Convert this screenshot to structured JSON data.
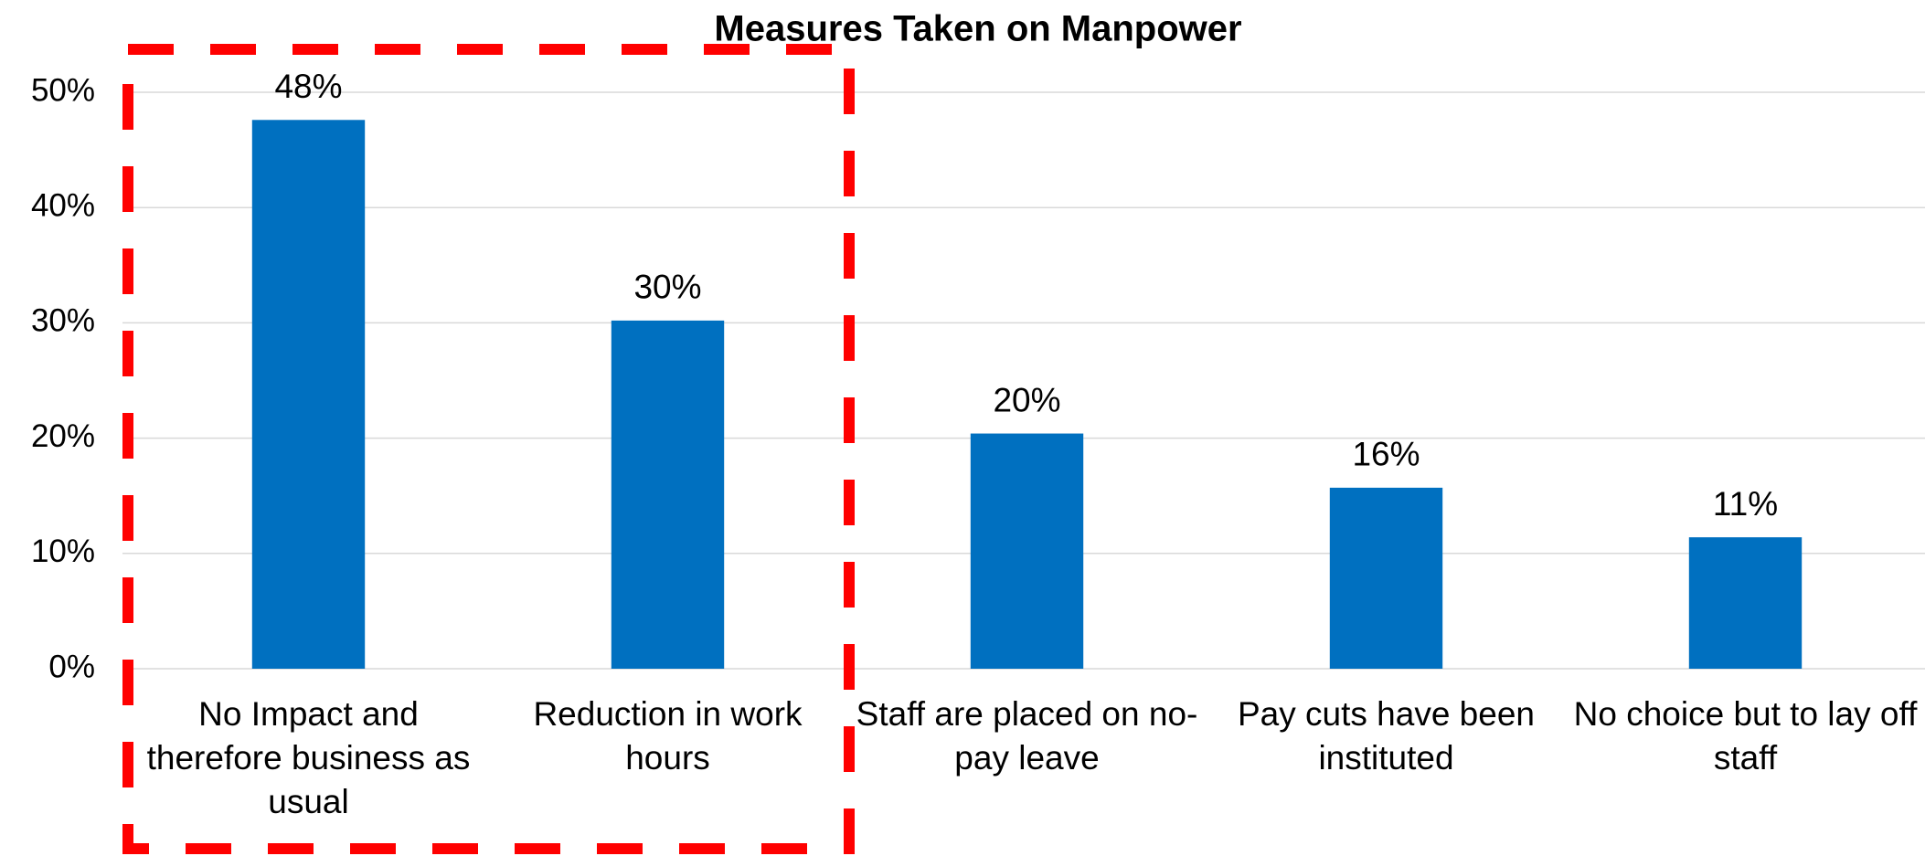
{
  "chart_data": {
    "type": "bar",
    "title": "Measures Taken on Manpower",
    "categories": [
      "No Impact and therefore business as usual",
      "Reduction in work hours",
      "Staff are placed on no-pay leave",
      "Pay cuts have been instituted",
      "No choice but to lay off staff"
    ],
    "values": [
      47.6,
      30.2,
      20.4,
      15.7,
      11.4
    ],
    "value_labels": [
      "48%",
      "30%",
      "20%",
      "16%",
      "11%"
    ],
    "color": "#0070c0",
    "ylim": [
      0,
      50
    ],
    "yticks": [
      {
        "value": 0,
        "label": "0%"
      },
      {
        "value": 10,
        "label": "10%"
      },
      {
        "value": 20,
        "label": "20%"
      },
      {
        "value": 30,
        "label": "30%"
      },
      {
        "value": 40,
        "label": "40%"
      },
      {
        "value": 50,
        "label": "50%"
      }
    ],
    "grid": true
  }
}
